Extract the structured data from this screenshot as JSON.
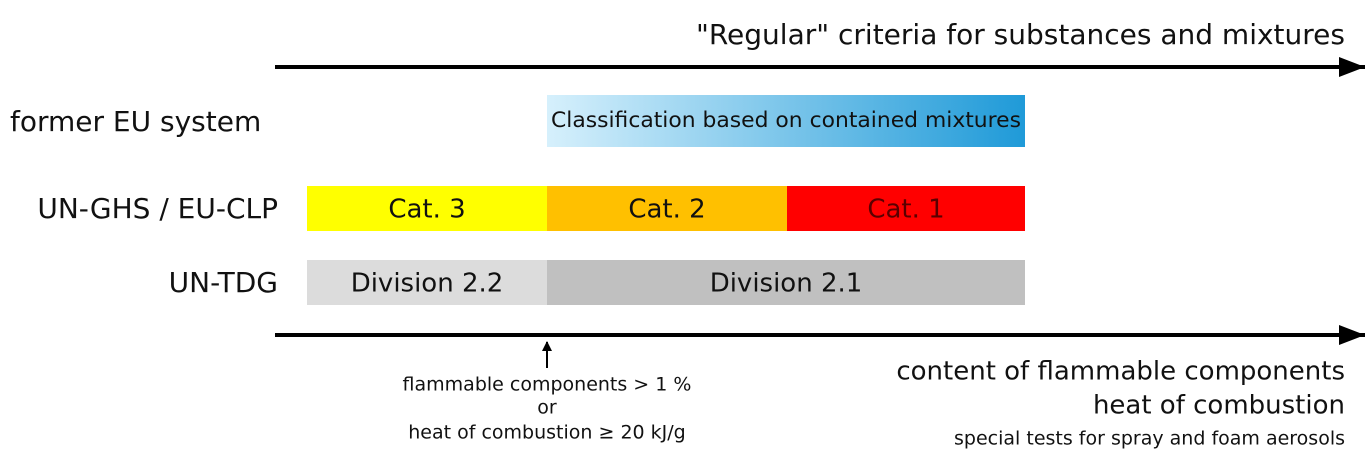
{
  "header": {
    "title": "\"Regular\" criteria for substances and mixtures"
  },
  "rows": [
    {
      "label": "former EU system",
      "bars": [
        "Classification based on contained mixtures"
      ]
    },
    {
      "label": "UN-GHS / EU-CLP",
      "bars": [
        "Cat. 3",
        "Cat. 2",
        "Cat. 1"
      ]
    },
    {
      "label": "UN-TDG",
      "bars": [
        "Division 2.2",
        "Division 2.1"
      ]
    }
  ],
  "threshold": {
    "lines": [
      "flammable components > 1 %",
      "or",
      "heat of combustion ≥ 20 kJ/g"
    ]
  },
  "axis": {
    "lines": [
      "content of flammable components",
      "heat of combustion",
      "special tests for spray and foam aerosols"
    ]
  }
}
